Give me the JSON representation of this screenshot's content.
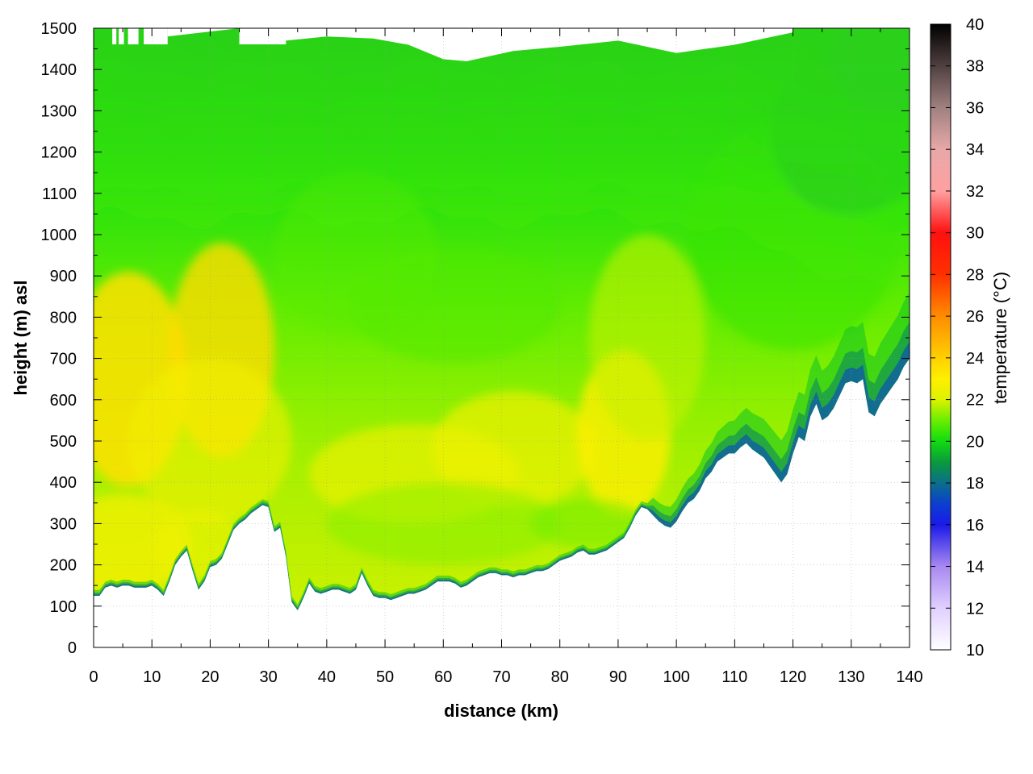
{
  "chart_data": {
    "type": "heatmap",
    "title": "",
    "xlabel": "distance (km)",
    "ylabel": "height (m) asl",
    "colorbar_label": "temperature (°C)",
    "xlim": [
      0,
      140
    ],
    "ylim": [
      0,
      1500
    ],
    "clim": [
      10,
      40
    ],
    "x_ticks": [
      0,
      10,
      20,
      30,
      40,
      50,
      60,
      70,
      80,
      90,
      100,
      110,
      120,
      130,
      140
    ],
    "y_ticks": [
      0,
      100,
      200,
      300,
      400,
      500,
      600,
      700,
      800,
      900,
      1000,
      1100,
      1200,
      1300,
      1400,
      1500
    ],
    "colorbar_ticks": [
      10,
      12,
      14,
      16,
      18,
      20,
      22,
      24,
      26,
      28,
      30,
      32,
      34,
      36,
      38,
      40
    ],
    "grid": true,
    "colormap": [
      {
        "t": 10,
        "color": "#ffffff"
      },
      {
        "t": 12,
        "color": "#e0d0ff"
      },
      {
        "t": 14,
        "color": "#a888f0"
      },
      {
        "t": 16,
        "color": "#1a1ae8"
      },
      {
        "t": 17,
        "color": "#0b3fd0"
      },
      {
        "t": 18,
        "color": "#0a6f8a"
      },
      {
        "t": 19,
        "color": "#0a9a3c"
      },
      {
        "t": 20,
        "color": "#10dc10"
      },
      {
        "t": 21,
        "color": "#6aee00"
      },
      {
        "t": 22,
        "color": "#dcf200"
      },
      {
        "t": 23,
        "color": "#ffef00"
      },
      {
        "t": 24,
        "color": "#ffd000"
      },
      {
        "t": 26,
        "color": "#ff8c00"
      },
      {
        "t": 28,
        "color": "#ff3000"
      },
      {
        "t": 30,
        "color": "#ff1010"
      },
      {
        "t": 32,
        "color": "#ffa0a0"
      },
      {
        "t": 34,
        "color": "#e8a8a8"
      },
      {
        "t": 36,
        "color": "#a08080"
      },
      {
        "t": 38,
        "color": "#504040"
      },
      {
        "t": 40,
        "color": "#000000"
      }
    ],
    "terrain": {
      "x": [
        0,
        1,
        2,
        3,
        4,
        5,
        6,
        7,
        8,
        9,
        10,
        11,
        12,
        13,
        14,
        15,
        16,
        17,
        18,
        19,
        20,
        21,
        22,
        23,
        24,
        25,
        26,
        27,
        28,
        29,
        30,
        31,
        32,
        33,
        34,
        35,
        36,
        37,
        38,
        39,
        40,
        41,
        42,
        43,
        44,
        45,
        46,
        47,
        48,
        49,
        50,
        51,
        52,
        53,
        54,
        55,
        56,
        57,
        58,
        59,
        60,
        61,
        62,
        63,
        64,
        65,
        66,
        67,
        68,
        69,
        70,
        71,
        72,
        73,
        74,
        75,
        76,
        77,
        78,
        79,
        80,
        81,
        82,
        83,
        84,
        85,
        86,
        87,
        88,
        89,
        90,
        91,
        92,
        93,
        94,
        95,
        96,
        97,
        98,
        99,
        100,
        101,
        102,
        103,
        104,
        105,
        106,
        107,
        108,
        109,
        110,
        111,
        112,
        113,
        114,
        115,
        116,
        117,
        118,
        119,
        120,
        121,
        122,
        123,
        124,
        125,
        126,
        127,
        128,
        129,
        130,
        131,
        132,
        133,
        134,
        135,
        136,
        137,
        138,
        139,
        140
      ],
      "height": [
        125,
        125,
        145,
        150,
        145,
        150,
        150,
        145,
        145,
        145,
        150,
        140,
        125,
        160,
        200,
        220,
        235,
        185,
        140,
        160,
        195,
        200,
        215,
        250,
        285,
        300,
        310,
        325,
        335,
        345,
        340,
        280,
        290,
        220,
        110,
        90,
        120,
        155,
        135,
        130,
        135,
        140,
        140,
        135,
        130,
        140,
        180,
        150,
        125,
        120,
        120,
        115,
        120,
        125,
        130,
        130,
        135,
        140,
        150,
        160,
        160,
        160,
        155,
        145,
        150,
        160,
        170,
        175,
        180,
        180,
        175,
        175,
        170,
        175,
        175,
        180,
        185,
        185,
        190,
        200,
        210,
        215,
        220,
        230,
        235,
        225,
        225,
        230,
        235,
        245,
        255,
        265,
        290,
        320,
        340,
        335,
        320,
        305,
        295,
        290,
        305,
        330,
        350,
        360,
        380,
        410,
        425,
        450,
        460,
        470,
        470,
        485,
        495,
        480,
        470,
        460,
        440,
        420,
        400,
        420,
        470,
        510,
        500,
        560,
        590,
        550,
        560,
        580,
        610,
        640,
        645,
        640,
        650,
        570,
        560,
        590,
        610,
        630,
        650,
        680,
        700
      ]
    }
  }
}
